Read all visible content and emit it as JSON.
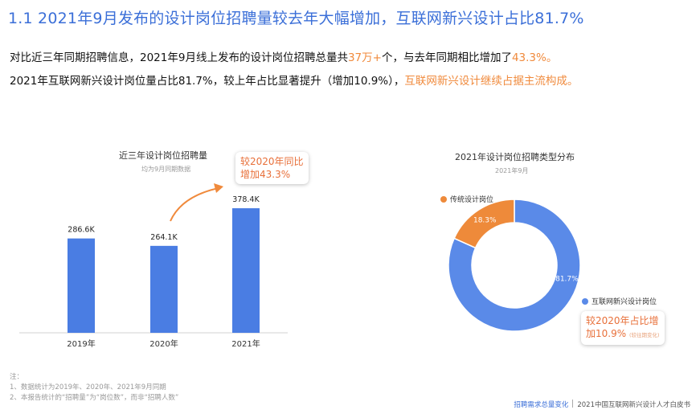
{
  "header": {
    "title": "1.1 2021年9月发布的设计岗位招聘量较去年大幅增加，互联网新兴设计占比81.7%"
  },
  "intro": {
    "line1": {
      "a": "对比近三年同期招聘信息，2021年9月线上发布的设计岗位招聘总量共",
      "b": "37万+",
      "c": "个，与去年同期相比增加了",
      "d": "43.3%。"
    },
    "line2": {
      "a": "2021年互联网新兴设计岗位量占比81.7%，较上年占比显著提升（增加10.9%），",
      "b": "互联网新兴设计继续占据主流构成。"
    }
  },
  "colors": {
    "primary": "#3b6fd8",
    "accent": "#f08a3c",
    "bar": "#4a7de3",
    "donut_main": "#5a8ae8",
    "donut_minor": "#ee8a3a"
  },
  "bar_chart": {
    "callout": {
      "line1": "较2020年同比",
      "line2": "增加43.3%"
    }
  },
  "donut_chart": {
    "callout": {
      "line1": "较2020年占比增",
      "line2": "加10.9%",
      "note": "(较往期变化)"
    }
  },
  "chart_data": [
    {
      "type": "bar",
      "title": "近三年设计岗位招聘量",
      "subtitle": "均为9月同期数据",
      "categories": [
        "2019年",
        "2020年",
        "2021年"
      ],
      "values": [
        286.6,
        264.1,
        378.4
      ],
      "value_labels": [
        "286.6K",
        "264.1K",
        "378.4K"
      ],
      "unit": "K",
      "ylim": [
        0,
        420
      ],
      "grid": false
    },
    {
      "type": "pie",
      "title": "2021年设计岗位招聘类型分布",
      "subtitle": "2021年9月",
      "labels": [
        "互联网新兴设计岗位",
        "传统设计岗位"
      ],
      "values": [
        81.7,
        18.3
      ],
      "value_labels": [
        "81.7%",
        "18.3%"
      ],
      "legend": "beside-slices"
    }
  ],
  "notes": {
    "heading": "注：",
    "line1": "1、数据统计为2019年、2020年、2021年9月同期",
    "line2": "2、本报告统计的“招聘量”为“岗位数”，而非“招聘人数”"
  },
  "footer": {
    "section": "招聘需求总量变化",
    "report": "2021中国互联网新兴设计人才白皮书"
  }
}
